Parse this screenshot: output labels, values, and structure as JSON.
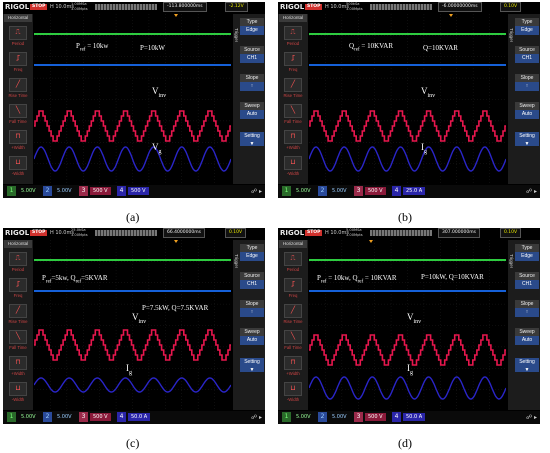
{
  "captions": [
    "(a)",
    "(b)",
    "(c)",
    "(d)"
  ],
  "common": {
    "brand": "RIGOL",
    "stop": "STOP",
    "horizontal": "Horizontal",
    "left_menu": [
      "Period",
      "Freq",
      "Rise Time",
      "Fall Time",
      "+Width",
      "-Width"
    ],
    "right_menu": [
      {
        "h": "Type",
        "v": "Edge"
      },
      {
        "h": "Source",
        "v": "CH1"
      },
      {
        "h": "Slope",
        "v": "↑"
      },
      {
        "h": "Sweep",
        "v": "Auto"
      }
    ],
    "setting": "Setting",
    "trigger_label": "Trigger",
    "ch1": "5.00V",
    "ch2": "5.00V",
    "ch3": "500 V",
    "colors": {
      "ch1": "#2ecc40",
      "ch2": "#1560d8",
      "ch3": "#e8174e",
      "ch4": "#2a25c8"
    }
  },
  "panels": [
    {
      "timebase": "H 10.0ms",
      "sample": "1.00MSa 3.00Mpts",
      "trigger_time": "-113.800000ms",
      "trigger_level": "-2.12V",
      "ch4": "500 V",
      "labels": {
        "pref": "P",
        "pref_sub": "ref",
        "pref_val": " = 10kw",
        "meas": "P=10kW",
        "v_main": "V",
        "v_sub": "inv",
        "g_main": "V",
        "g_sub": "g"
      }
    },
    {
      "timebase": "H 10.0ms",
      "sample": "500kSa 3.00Mpts",
      "trigger_time": "-6.00000000ms",
      "trigger_level": "0.10V",
      "ch4": "25.0 A",
      "labels": {
        "pref": "Q",
        "pref_sub": "ref",
        "pref_val": " = 10KVAR",
        "meas": "Q=10KVAR",
        "v_main": "V",
        "v_sub": "inv",
        "g_main": "I",
        "g_sub": "g"
      }
    },
    {
      "timebase": "H 10.0ms",
      "sample": "25.0kSa 3.00Mpts",
      "trigger_time": "66.4000000ms",
      "trigger_level": "0.10V",
      "ch4": "50.0 A",
      "labels": {
        "pref": "P",
        "pref_sub": "ref",
        "pref_val": "=5kw, Q",
        "qref_sub": "ref",
        "qref_val": "=5KVAR",
        "meas": "P=7.5kW, Q=7.5KVAR",
        "v_main": "V",
        "v_sub": "inv",
        "g_main": "I",
        "g_sub": "g"
      }
    },
    {
      "timebase": "H 10.0ms",
      "sample": "5.00MSa 3.00Mpts",
      "trigger_time": "307.000000ms",
      "trigger_level": "0.10V",
      "ch4": "50.0 A",
      "labels": {
        "pref": "P",
        "pref_sub": "ref",
        "pref_val": " = 10kw, Q",
        "qref_sub": "ref",
        "qref_val": " = 10KVAR",
        "meas": "P=10kW, Q=10KVAR",
        "v_main": "V",
        "v_sub": "inv",
        "g_main": "I",
        "g_sub": "g"
      }
    }
  ]
}
